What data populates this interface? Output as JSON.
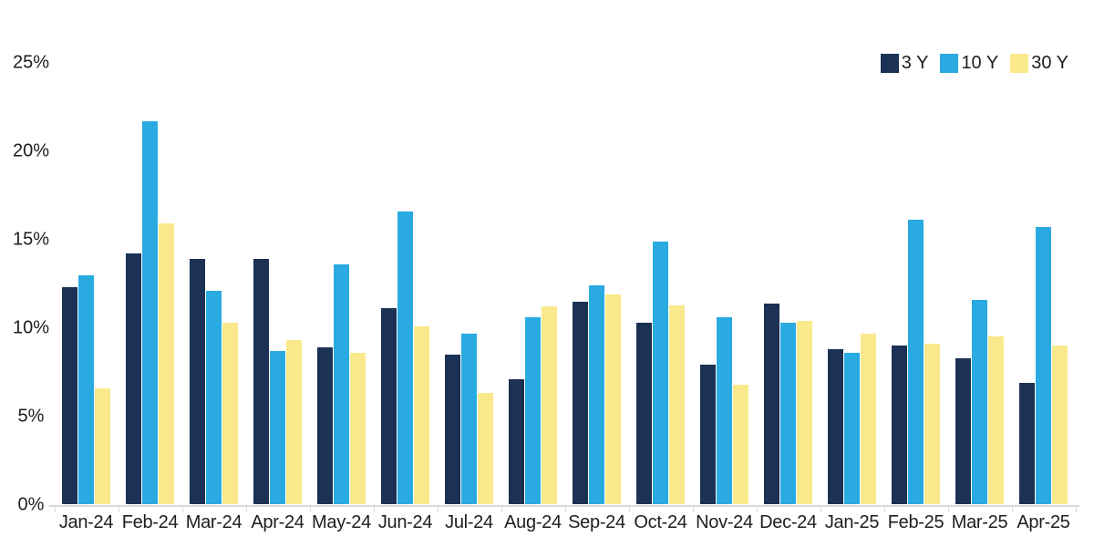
{
  "chart_data": {
    "type": "bar",
    "title": "",
    "xlabel": "",
    "ylabel": "",
    "ylim": [
      0,
      25
    ],
    "grid": false,
    "legend_position": "top-right",
    "y_ticks": [
      {
        "value": 0,
        "label": "0%"
      },
      {
        "value": 5,
        "label": "5%"
      },
      {
        "value": 10,
        "label": "10%"
      },
      {
        "value": 15,
        "label": "15%"
      },
      {
        "value": 20,
        "label": "20%"
      },
      {
        "value": 25,
        "label": "25%"
      }
    ],
    "categories": [
      "Jan-24",
      "Feb-24",
      "Mar-24",
      "Apr-24",
      "May-24",
      "Jun-24",
      "Jul-24",
      "Aug-24",
      "Sep-24",
      "Oct-24",
      "Nov-24",
      "Dec-24",
      "Jan-25",
      "Feb-25",
      "Mar-25",
      "Apr-25"
    ],
    "series": [
      {
        "name": "3 Y",
        "color": "#1B3155",
        "values": [
          12.3,
          14.2,
          13.9,
          13.9,
          8.9,
          11.1,
          8.5,
          7.1,
          11.5,
          10.3,
          7.9,
          11.4,
          8.8,
          9.0,
          8.3,
          6.9
        ]
      },
      {
        "name": "10 Y",
        "color": "#29AAE1",
        "values": [
          13.0,
          21.7,
          12.1,
          8.7,
          13.6,
          16.6,
          9.7,
          10.6,
          12.4,
          14.9,
          10.6,
          10.3,
          8.6,
          16.1,
          11.6,
          15.7
        ]
      },
      {
        "name": "30 Y",
        "color": "#FAE98C",
        "values": [
          6.6,
          15.9,
          10.3,
          9.3,
          8.6,
          10.1,
          6.3,
          11.2,
          11.9,
          11.3,
          6.8,
          10.4,
          9.7,
          9.1,
          9.5,
          9.0
        ]
      }
    ],
    "colors": {
      "axis_line": "#d9d9d9",
      "tick": "#d9d9d9",
      "text": "#1e1e1e",
      "background": "#ffffff"
    }
  }
}
